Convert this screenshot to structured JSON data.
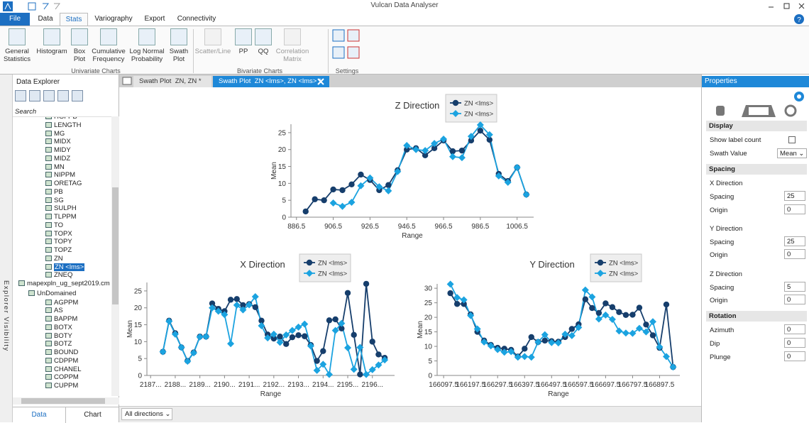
{
  "window": {
    "title": "Vulcan Data Analyser"
  },
  "ribbon": {
    "tabs": [
      "File",
      "Data",
      "Stats",
      "Variography",
      "Export",
      "Connectivity"
    ],
    "groups": [
      {
        "label": "Univariate Charts",
        "buttons": [
          "General Statistics",
          "Histogram",
          "Box Plot",
          "Cumulative Frequency",
          "Log Normal Probability",
          "Swath Plot"
        ]
      },
      {
        "label": "Bivariate Charts",
        "buttons": [
          "Scatter/Line",
          "PP",
          "QQ",
          "Correlation Matrix"
        ]
      },
      {
        "label": "Settings"
      }
    ]
  },
  "explorer": {
    "title": "Data Explorer",
    "search": "Search",
    "side_label": "Explorer Visibility",
    "fields_top": [
      "HGFPB",
      "LENGTH",
      "MG",
      "MIDX",
      "MIDY",
      "MIDZ",
      "MN",
      "NIPPM",
      "ORETAG",
      "PB",
      "SG",
      "SULPH",
      "TLPPM",
      "TO",
      "TOPX",
      "TOPY",
      "TOPZ",
      "ZN",
      "ZN <lms>",
      "ZNEQ"
    ],
    "database": "mapexpln_ug_sept2019.cm",
    "domain": "UnDomained",
    "fields": [
      "AGPPM",
      "AS",
      "BAPPM",
      "BOTX",
      "BOTY",
      "BOTZ",
      "BOUND",
      "CDPPM",
      "CHANEL",
      "COPPM",
      "CUPPM"
    ],
    "bottom_tabs": [
      "Data",
      "Chart"
    ]
  },
  "documents": {
    "tabs": [
      "Swath Plot  ZN, ZN *",
      "Swath Plot  ZN <lms>, ZN <lms> *"
    ],
    "direction_filter": "All directions"
  },
  "properties": {
    "title": "Properties",
    "display": {
      "title": "Display",
      "show_label_count": "Show label count",
      "swath_value_label": "Swath Value",
      "swath_value": "Mean"
    },
    "spacing": {
      "title": "Spacing",
      "directions": [
        {
          "name": "X Direction",
          "spacing_label": "Spacing",
          "spacing": 25,
          "origin_label": "Origin",
          "origin": 0
        },
        {
          "name": "Y Direction",
          "spacing_label": "Spacing",
          "spacing": 25,
          "origin_label": "Origin",
          "origin": 0
        },
        {
          "name": "Z Direction",
          "spacing_label": "Spacing",
          "spacing": 5,
          "origin_label": "Origin",
          "origin": 0
        }
      ]
    },
    "rotation": {
      "title": "Rotation",
      "fields": [
        {
          "label": "Azimuth",
          "value": 0
        },
        {
          "label": "Dip",
          "value": 0
        },
        {
          "label": "Plunge",
          "value": 0
        }
      ]
    }
  },
  "chart_data": [
    {
      "type": "line",
      "title": "Z Direction",
      "x_label": "Range",
      "y_label": "Mean",
      "x": [
        891.5,
        896.5,
        901.5,
        906.5,
        911.5,
        916.5,
        921.5,
        926.5,
        931.5,
        936.5,
        941.5,
        946.5,
        951.5,
        956.5,
        961.5,
        966.5,
        971.5,
        976.5,
        981.5,
        986.5,
        991.5,
        996.5,
        1001.5,
        1006.5,
        1011.5
      ],
      "series": [
        {
          "name": "ZN <lms>",
          "color": "#163e6c",
          "marker": "circle",
          "values": [
            1.7,
            5.3,
            5,
            8.2,
            8,
            9.7,
            12.6,
            11,
            8,
            9.5,
            13.9,
            20,
            20.4,
            18.3,
            20.4,
            22.7,
            19.5,
            19.7,
            22.7,
            25.6,
            22.9,
            12.8,
            10.7,
            14.7,
            6.7
          ]
        },
        {
          "name": "ZN <lms>",
          "color": "#1ba3e0",
          "marker": "diamond",
          "values": [
            null,
            null,
            null,
            4.2,
            3.2,
            4.4,
            9.3,
            11.6,
            9,
            7.8,
            13.5,
            21.2,
            20,
            19.7,
            21.8,
            23.1,
            17.9,
            17.6,
            23.9,
            27.3,
            24.4,
            12.2,
            10.3,
            14.7,
            6.7
          ]
        }
      ],
      "xlim": [
        883.5,
        1015.5
      ],
      "xticks": [
        886.5,
        906.5,
        926.5,
        946.5,
        966.5,
        986.5,
        1006.5
      ],
      "ylim": [
        0,
        27.5
      ],
      "yticks": [
        0,
        5,
        10,
        15,
        20,
        25
      ],
      "grid": false
    },
    {
      "type": "line",
      "title": "X Direction",
      "x_label": "Range",
      "y_label": "Mean",
      "x": [
        218750,
        218775,
        218800,
        218825,
        218850,
        218875,
        218900,
        218925,
        218950,
        218975,
        219000,
        219025,
        219050,
        219075,
        219100,
        219125,
        219150,
        219175,
        219200,
        219225,
        219250,
        219275,
        219300,
        219325,
        219350,
        219375,
        219400,
        219425,
        219450,
        219475,
        219500,
        219525,
        219550,
        219575,
        219600,
        219625,
        219650
      ],
      "series": [
        {
          "name": "ZN <lms>",
          "color": "#163e6c",
          "marker": "circle",
          "values": [
            7,
            16.2,
            12.5,
            8.3,
            4.3,
            6.8,
            11.5,
            11.5,
            21.3,
            19.7,
            19,
            22.4,
            22.6,
            20.8,
            21.1,
            20.2,
            16.2,
            12.1,
            10.9,
            11.5,
            9.3,
            11.3,
            11.9,
            11.6,
            9,
            4.3,
            7.2,
            16.3,
            16.6,
            13.9,
            24.4,
            12,
            0.3,
            27.1,
            10,
            6.2,
            5.2
          ]
        },
        {
          "name": "ZN <lms>",
          "color": "#1ba3e0",
          "marker": "diamond",
          "values": [
            7,
            16,
            12.2,
            8.3,
            4.2,
            6.7,
            11.4,
            11.5,
            20,
            19,
            18,
            9.4,
            20.8,
            19.4,
            20.9,
            23.3,
            14.7,
            11.1,
            12.2,
            9.8,
            12,
            13.3,
            14.3,
            15.2,
            8.7,
            1.5,
            3.3,
            0.3,
            13.3,
            15.4,
            8.2,
            1.8,
            8.3,
            0.3,
            1.7,
            3.1,
            4.6
          ]
        }
      ],
      "xlim": [
        218685,
        219690
      ],
      "xticks": [
        {
          "value": 218700,
          "label": "2187..."
        },
        {
          "value": 218800,
          "label": "2188..."
        },
        {
          "value": 218900,
          "label": "2189..."
        },
        {
          "value": 219000,
          "label": "2190..."
        },
        {
          "value": 219100,
          "label": "2191..."
        },
        {
          "value": 219200,
          "label": "2192..."
        },
        {
          "value": 219300,
          "label": "2193..."
        },
        {
          "value": 219400,
          "label": "2194..."
        },
        {
          "value": 219500,
          "label": "2195..."
        },
        {
          "value": 219600,
          "label": "2196..."
        }
      ],
      "ylim": [
        0,
        27.5
      ],
      "yticks": [
        0,
        5,
        10,
        15,
        20,
        25
      ],
      "grid": false
    },
    {
      "type": "line",
      "title": "Y Direction",
      "x_label": "Range",
      "y_label": "Mean",
      "x": [
        166122.5,
        166147.5,
        166172.5,
        166197.5,
        166222.5,
        166247.5,
        166272.5,
        166297.5,
        166322.5,
        166347.5,
        166372.5,
        166397.5,
        166422.5,
        166447.5,
        166472.5,
        166497.5,
        166522.5,
        166547.5,
        166572.5,
        166597.5,
        166622.5,
        166647.5,
        166672.5,
        166697.5,
        166722.5,
        166747.5,
        166772.5,
        166797.5,
        166822.5,
        166847.5,
        166872.5,
        166897.5,
        166922.5,
        166947.5
      ],
      "series": [
        {
          "name": "ZN <lms>",
          "color": "#163e6c",
          "marker": "circle",
          "values": [
            28.3,
            24.6,
            24.6,
            21,
            15,
            12,
            10.5,
            9.5,
            9.2,
            8.8,
            6.5,
            9.2,
            13.2,
            11.5,
            12,
            11.8,
            11.6,
            13.2,
            16,
            17.6,
            26.2,
            23.2,
            21.5,
            24.8,
            23.5,
            21.8,
            20.8,
            20.9,
            23.3,
            17.5,
            13.8,
            9.5,
            24.4,
            2.9
          ]
        },
        {
          "name": "ZN <lms>",
          "color": "#1ba3e0",
          "marker": "diamond",
          "values": [
            31.4,
            26.8,
            26,
            20.6,
            16,
            11.5,
            10.2,
            8.9,
            8,
            8.2,
            6.3,
            6.5,
            6.3,
            11.5,
            14,
            11.3,
            11.2,
            14.2,
            13.7,
            16.5,
            29.4,
            27,
            19.4,
            20.8,
            19.3,
            15.3,
            14.6,
            14.5,
            16.2,
            15,
            18.5,
            9.8,
            6.5,
            2.9
          ]
        }
      ],
      "xlim": [
        166073.5,
        166972.5
      ],
      "xticks": [
        166097.5,
        166197.5,
        166297.5,
        166397.5,
        166497.5,
        166597.5,
        166697.5,
        166797.5,
        166897.5
      ],
      "ylim": [
        0,
        31.5
      ],
      "yticks": [
        0,
        5,
        10,
        15,
        20,
        25,
        30
      ],
      "grid": false
    }
  ]
}
